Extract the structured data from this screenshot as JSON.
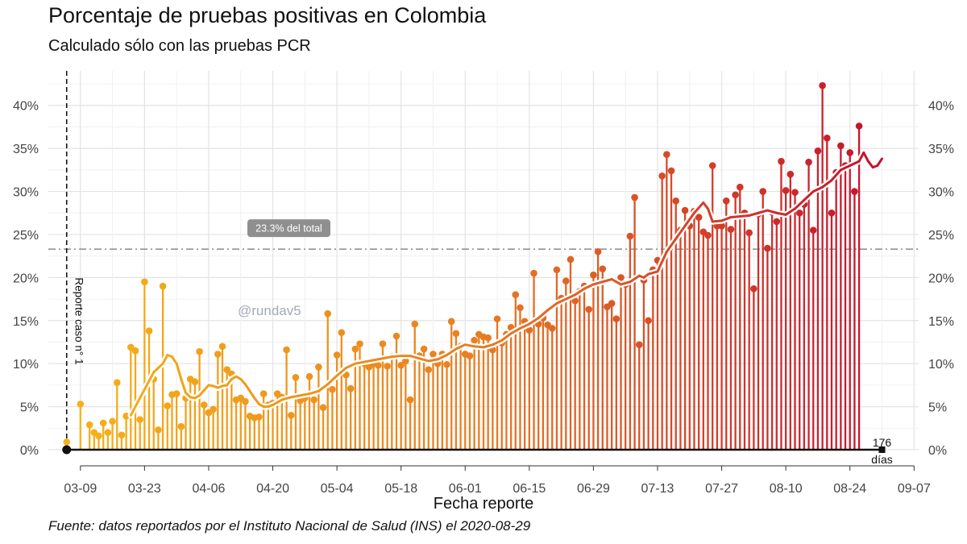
{
  "title": "Porcentaje de pruebas positivas en Colombia",
  "subtitle": "Calculado sólo con las pruebas PCR",
  "caption": "Fuente: datos reportados por el Instituto Nacional de Salud (INS) el 2020-08-29",
  "watermark": "@rundav5",
  "colors": {
    "start": "#f5b318",
    "mid": "#e87e22",
    "end": "#c4102e",
    "text": "#111111"
  },
  "chart_data": {
    "type": "bar",
    "title": "Porcentaje de pruebas positivas en Colombia",
    "subtitle": "Calculado sólo con las pruebas PCR",
    "xlabel": "Fecha reporte",
    "ylabel": "",
    "ylim": [
      0,
      44
    ],
    "y_ticks": [
      0,
      5,
      10,
      15,
      20,
      25,
      30,
      35,
      40
    ],
    "y_tick_labels": [
      "0%",
      "5%",
      "10%",
      "15%",
      "20%",
      "25%",
      "30%",
      "35%",
      "40%"
    ],
    "x_tick_days": [
      3,
      17,
      31,
      45,
      59,
      73,
      87,
      101,
      115,
      129,
      143,
      157,
      171,
      185
    ],
    "x_tick_labels": [
      "03-09",
      "03-23",
      "04-06",
      "04-20",
      "05-04",
      "05-18",
      "06-01",
      "06-15",
      "06-29",
      "07-13",
      "07-27",
      "08-10",
      "08-24",
      "09-07"
    ],
    "x_range_days": [
      -4,
      186
    ],
    "day_zero": "03-06",
    "first_day": 0,
    "values": [
      0.9,
      null,
      null,
      5.3,
      null,
      2.9,
      2.0,
      1.6,
      3.1,
      2.0,
      3.3,
      7.8,
      1.7,
      3.9,
      11.9,
      11.5,
      3.5,
      19.5,
      13.8,
      8.2,
      2.3,
      19.0,
      5.1,
      6.4,
      6.5,
      2.7,
      6.0,
      8.2,
      7.9,
      11.4,
      5.2,
      4.3,
      4.7,
      11.1,
      12.0,
      9.3,
      8.8,
      5.8,
      6.0,
      5.6,
      3.9,
      3.7,
      3.8,
      6.5,
      5.2,
      5.4,
      6.5,
      6.1,
      11.6,
      4.0,
      8.4,
      5.7,
      6.0,
      8.5,
      5.8,
      9.6,
      4.9,
      15.8,
      7.0,
      11.0,
      13.6,
      8.7,
      7.1,
      11.7,
      12.3,
      10.0,
      9.6,
      10.0,
      9.8,
      12.3,
      9.7,
      10.8,
      13.2,
      9.8,
      10.3,
      5.8,
      14.6,
      10.9,
      11.7,
      9.3,
      11.1,
      10.0,
      11.1,
      9.9,
      14.9,
      13.5,
      12.0,
      11.1,
      10.9,
      12.7,
      13.4,
      13.1,
      13.0,
      11.6,
      15.2,
      12.4,
      13.4,
      14.2,
      18.0,
      16.5,
      14.9,
      13.9,
      20.5,
      14.6,
      15.3,
      14.5,
      14.1,
      20.9,
      17.6,
      19.6,
      22.1,
      17.3,
      18.4,
      19.0,
      16.3,
      20.3,
      23.0,
      21.0,
      16.6,
      17.0,
      15.2,
      20.0,
      19.2,
      24.8,
      29.3,
      12.2,
      19.7,
      15.0,
      20.9,
      22.0,
      31.8,
      34.3,
      32.4,
      28.9,
      25.5,
      27.8,
      26.0,
      27.7,
      27.0,
      25.3,
      24.9,
      33.0,
      26.0,
      26.0,
      28.9,
      25.6,
      29.6,
      30.5,
      27.5,
      25.2,
      18.7,
      27.4,
      30.0,
      23.4,
      27.6,
      26.5,
      33.5,
      30.1,
      32.0,
      29.9,
      27.5,
      28.5,
      33.4,
      25.5,
      34.7,
      42.3,
      36.2,
      27.5,
      32.2,
      35.3,
      33.0,
      34.5,
      30.0,
      37.6
    ],
    "moving_average": [
      [
        14,
        4.0
      ],
      [
        17,
        7.0
      ],
      [
        19,
        9.0
      ],
      [
        21,
        10.0
      ],
      [
        22,
        11.0
      ],
      [
        23,
        10.8
      ],
      [
        24,
        10.0
      ],
      [
        25,
        8.2
      ],
      [
        26,
        6.6
      ],
      [
        27,
        6.1
      ],
      [
        28,
        6.0
      ],
      [
        29,
        6.3
      ],
      [
        30,
        6.9
      ],
      [
        31,
        7.5
      ],
      [
        32,
        7.4
      ],
      [
        33,
        7.2
      ],
      [
        34,
        7.4
      ],
      [
        35,
        7.5
      ],
      [
        36,
        8.2
      ],
      [
        37,
        8.5
      ],
      [
        38,
        8.2
      ],
      [
        39,
        7.6
      ],
      [
        40,
        6.8
      ],
      [
        41,
        6.0
      ],
      [
        42,
        5.3
      ],
      [
        43,
        5.0
      ],
      [
        44,
        5.0
      ],
      [
        45,
        5.2
      ],
      [
        47,
        5.8
      ],
      [
        49,
        6.1
      ],
      [
        51,
        6.3
      ],
      [
        53,
        6.5
      ],
      [
        55,
        6.8
      ],
      [
        57,
        7.6
      ],
      [
        59,
        8.6
      ],
      [
        61,
        9.5
      ],
      [
        63,
        10.0
      ],
      [
        65,
        10.2
      ],
      [
        67,
        10.4
      ],
      [
        69,
        10.6
      ],
      [
        71,
        10.8
      ],
      [
        73,
        10.9
      ],
      [
        75,
        10.9
      ],
      [
        77,
        10.6
      ],
      [
        79,
        10.3
      ],
      [
        81,
        10.5
      ],
      [
        83,
        11.0
      ],
      [
        85,
        11.7
      ],
      [
        87,
        12.2
      ],
      [
        89,
        12.0
      ],
      [
        91,
        11.9
      ],
      [
        93,
        12.2
      ],
      [
        95,
        12.7
      ],
      [
        97,
        13.5
      ],
      [
        99,
        14.1
      ],
      [
        101,
        14.6
      ],
      [
        103,
        15.3
      ],
      [
        105,
        16.2
      ],
      [
        107,
        17.0
      ],
      [
        109,
        17.5
      ],
      [
        111,
        18.0
      ],
      [
        113,
        18.7
      ],
      [
        115,
        19.2
      ],
      [
        117,
        19.5
      ],
      [
        119,
        19.8
      ],
      [
        121,
        19.2
      ],
      [
        123,
        19.5
      ],
      [
        125,
        20.2
      ],
      [
        126,
        20.0
      ],
      [
        127,
        20.4
      ],
      [
        129,
        20.7
      ],
      [
        131,
        23.0
      ],
      [
        133,
        24.5
      ],
      [
        135,
        26.0
      ],
      [
        137,
        27.5
      ],
      [
        139,
        28.7
      ],
      [
        140,
        28.0
      ],
      [
        141,
        26.5
      ],
      [
        143,
        26.6
      ],
      [
        145,
        27.0
      ],
      [
        147,
        27.1
      ],
      [
        149,
        27.2
      ],
      [
        151,
        27.5
      ],
      [
        153,
        27.8
      ],
      [
        155,
        27.5
      ],
      [
        157,
        27.3
      ],
      [
        159,
        28.0
      ],
      [
        161,
        29.0
      ],
      [
        163,
        30.0
      ],
      [
        165,
        30.5
      ],
      [
        167,
        31.3
      ],
      [
        169,
        32.5
      ],
      [
        171,
        33.0
      ],
      [
        173,
        33.5
      ],
      [
        174,
        34.5
      ],
      [
        175,
        33.5
      ],
      [
        176,
        32.8
      ],
      [
        177,
        33.0
      ],
      [
        178,
        33.8
      ]
    ],
    "reference_line": {
      "value": 23.3,
      "label": "23.3% del total"
    },
    "event_line": {
      "day": 0,
      "label": "Reporte caso n° 1"
    },
    "duration_annotation": {
      "day": 178,
      "label_value": "176",
      "label_unit": "días"
    }
  }
}
